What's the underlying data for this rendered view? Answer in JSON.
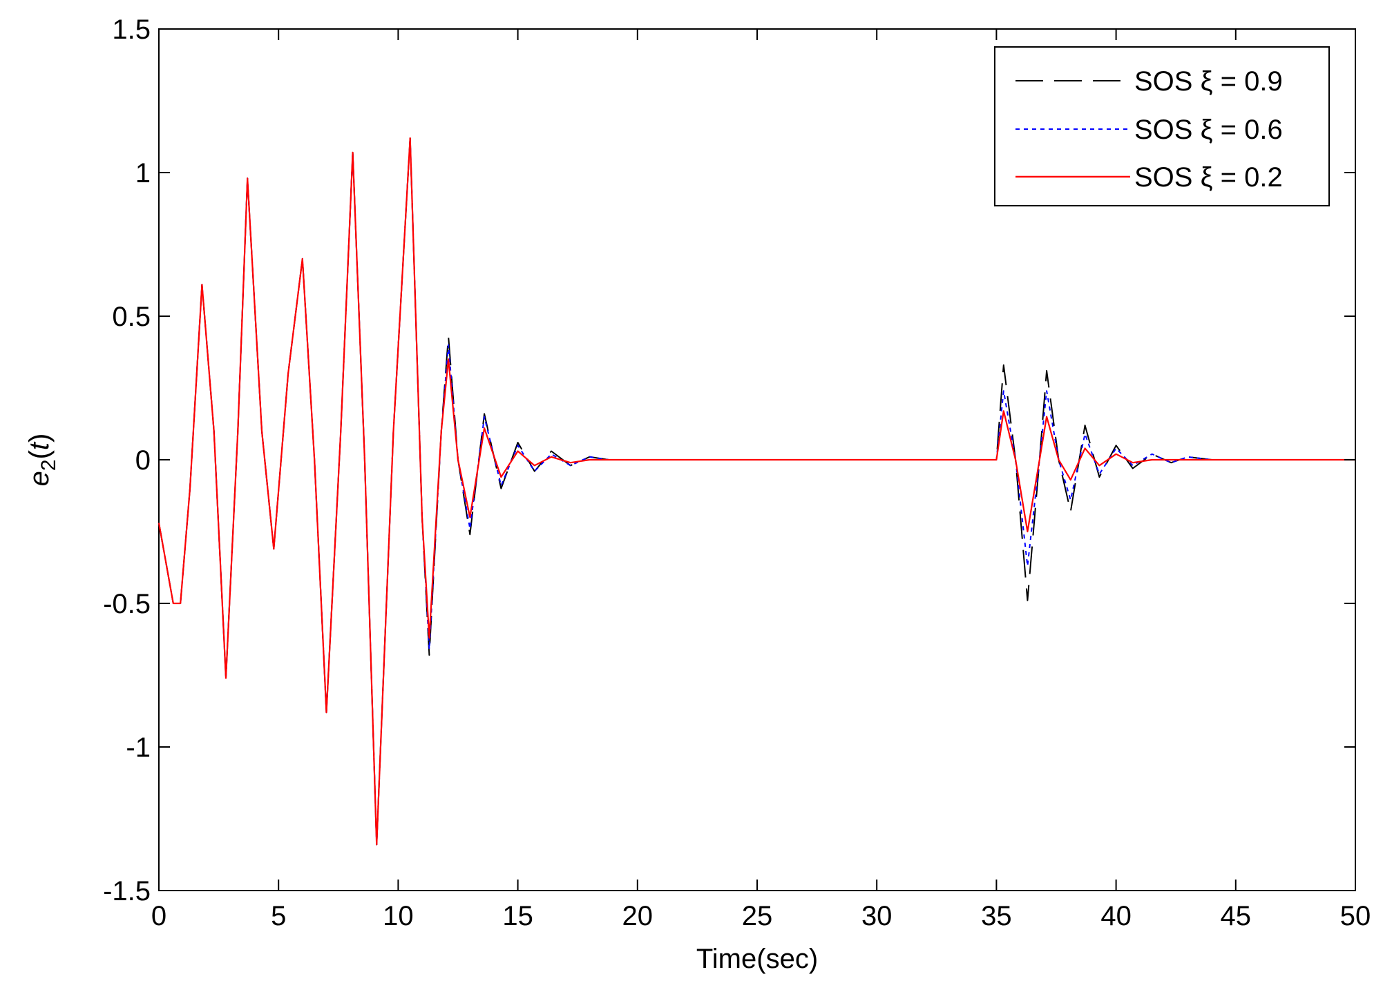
{
  "chart_data": {
    "type": "line",
    "xlabel": "Time(sec)",
    "ylabel": {
      "base": "e",
      "sub": "2",
      "open": "(",
      "var": "t",
      "close": ")"
    },
    "xlim": [
      0,
      50
    ],
    "ylim": [
      -1.5,
      1.5
    ],
    "xticks": [
      0,
      5,
      10,
      15,
      20,
      25,
      30,
      35,
      40,
      45,
      50
    ],
    "yticks": [
      -1.5,
      -1,
      -0.5,
      0,
      0.5,
      1,
      1.5
    ],
    "xtick_labels": [
      "0",
      "5",
      "10",
      "15",
      "20",
      "25",
      "30",
      "35",
      "40",
      "45",
      "50"
    ],
    "ytick_labels": [
      "-1.5",
      "-1",
      "-0.5",
      "0",
      "0.5",
      "1",
      "1.5"
    ],
    "grid": false,
    "legend_position": "top-right",
    "series": [
      {
        "name": "SOS ξ = 0.9",
        "color": "#000000",
        "style": "dashed",
        "points": [
          [
            0,
            -0.22
          ],
          [
            0.6,
            -0.5
          ],
          [
            0.9,
            -0.5
          ],
          [
            1.3,
            -0.1
          ],
          [
            1.8,
            0.61
          ],
          [
            2.3,
            0.1
          ],
          [
            2.8,
            -0.76
          ],
          [
            3.3,
            0.1
          ],
          [
            3.7,
            0.98
          ],
          [
            4.3,
            0.1
          ],
          [
            4.8,
            -0.31
          ],
          [
            5.4,
            0.3
          ],
          [
            6.0,
            0.7
          ],
          [
            6.5,
            0.0
          ],
          [
            7.0,
            -0.88
          ],
          [
            7.6,
            0.1
          ],
          [
            8.1,
            1.07
          ],
          [
            8.6,
            0.0
          ],
          [
            9.1,
            -1.34
          ],
          [
            9.8,
            0.1
          ],
          [
            10.5,
            1.12
          ],
          [
            11.0,
            -0.2
          ],
          [
            11.3,
            -0.68
          ],
          [
            11.8,
            0.1
          ],
          [
            12.1,
            0.43
          ],
          [
            12.5,
            0.0
          ],
          [
            13.0,
            -0.26
          ],
          [
            13.6,
            0.16
          ],
          [
            14.3,
            -0.1
          ],
          [
            15.0,
            0.06
          ],
          [
            15.7,
            -0.04
          ],
          [
            16.4,
            0.03
          ],
          [
            17.2,
            -0.02
          ],
          [
            18.0,
            0.01
          ],
          [
            18.8,
            0.0
          ],
          [
            19.6,
            0.0
          ],
          [
            20,
            0
          ],
          [
            35,
            0
          ],
          [
            35.3,
            0.33
          ],
          [
            35.8,
            0.0
          ],
          [
            36.3,
            -0.49
          ],
          [
            36.8,
            0.0
          ],
          [
            37.1,
            0.31
          ],
          [
            37.6,
            0.0
          ],
          [
            38.1,
            -0.18
          ],
          [
            38.7,
            0.12
          ],
          [
            39.3,
            -0.06
          ],
          [
            40.0,
            0.05
          ],
          [
            40.7,
            -0.03
          ],
          [
            41.5,
            0.02
          ],
          [
            42.3,
            -0.01
          ],
          [
            43.0,
            0.01
          ],
          [
            44.0,
            0.0
          ],
          [
            50,
            0
          ]
        ]
      },
      {
        "name": "SOS ξ = 0.6",
        "color": "#0000ff",
        "style": "dotted",
        "points": [
          [
            0,
            -0.22
          ],
          [
            0.6,
            -0.5
          ],
          [
            0.9,
            -0.5
          ],
          [
            1.3,
            -0.1
          ],
          [
            1.8,
            0.61
          ],
          [
            2.3,
            0.1
          ],
          [
            2.8,
            -0.76
          ],
          [
            3.3,
            0.1
          ],
          [
            3.7,
            0.98
          ],
          [
            4.3,
            0.1
          ],
          [
            4.8,
            -0.31
          ],
          [
            5.4,
            0.3
          ],
          [
            6.0,
            0.7
          ],
          [
            6.5,
            0.0
          ],
          [
            7.0,
            -0.88
          ],
          [
            7.6,
            0.1
          ],
          [
            8.1,
            1.07
          ],
          [
            8.6,
            0.0
          ],
          [
            9.1,
            -1.34
          ],
          [
            9.8,
            0.1
          ],
          [
            10.5,
            1.12
          ],
          [
            11.0,
            -0.2
          ],
          [
            11.3,
            -0.66
          ],
          [
            11.8,
            0.1
          ],
          [
            12.1,
            0.4
          ],
          [
            12.5,
            0.0
          ],
          [
            13.0,
            -0.24
          ],
          [
            13.6,
            0.15
          ],
          [
            14.3,
            -0.09
          ],
          [
            15.0,
            0.05
          ],
          [
            15.7,
            -0.04
          ],
          [
            16.4,
            0.02
          ],
          [
            17.2,
            -0.02
          ],
          [
            18.0,
            0.01
          ],
          [
            18.8,
            0.0
          ],
          [
            19.6,
            0.0
          ],
          [
            20,
            0
          ],
          [
            35,
            0
          ],
          [
            35.3,
            0.24
          ],
          [
            35.8,
            0.0
          ],
          [
            36.3,
            -0.37
          ],
          [
            36.8,
            0.0
          ],
          [
            37.1,
            0.24
          ],
          [
            37.6,
            0.0
          ],
          [
            38.1,
            -0.14
          ],
          [
            38.7,
            0.09
          ],
          [
            39.3,
            -0.05
          ],
          [
            40.0,
            0.04
          ],
          [
            40.7,
            -0.02
          ],
          [
            41.5,
            0.02
          ],
          [
            42.3,
            -0.01
          ],
          [
            43.0,
            0.01
          ],
          [
            44.0,
            0.0
          ],
          [
            50,
            0
          ]
        ]
      },
      {
        "name": "SOS ξ = 0.2",
        "color": "#ff0000",
        "style": "solid",
        "points": [
          [
            0,
            -0.22
          ],
          [
            0.6,
            -0.5
          ],
          [
            0.9,
            -0.5
          ],
          [
            1.3,
            -0.1
          ],
          [
            1.8,
            0.61
          ],
          [
            2.3,
            0.1
          ],
          [
            2.8,
            -0.76
          ],
          [
            3.3,
            0.1
          ],
          [
            3.7,
            0.98
          ],
          [
            4.3,
            0.1
          ],
          [
            4.8,
            -0.31
          ],
          [
            5.4,
            0.3
          ],
          [
            6.0,
            0.7
          ],
          [
            6.5,
            0.0
          ],
          [
            7.0,
            -0.88
          ],
          [
            7.6,
            0.1
          ],
          [
            8.1,
            1.07
          ],
          [
            8.6,
            0.0
          ],
          [
            9.1,
            -1.34
          ],
          [
            9.8,
            0.1
          ],
          [
            10.5,
            1.12
          ],
          [
            11.0,
            -0.2
          ],
          [
            11.3,
            -0.62
          ],
          [
            11.8,
            0.1
          ],
          [
            12.1,
            0.35
          ],
          [
            12.5,
            0.0
          ],
          [
            13.0,
            -0.2
          ],
          [
            13.6,
            0.11
          ],
          [
            14.3,
            -0.06
          ],
          [
            15.0,
            0.03
          ],
          [
            15.7,
            -0.02
          ],
          [
            16.4,
            0.01
          ],
          [
            17.2,
            -0.01
          ],
          [
            18.0,
            0.0
          ],
          [
            20,
            0
          ],
          [
            35,
            0
          ],
          [
            35.3,
            0.17
          ],
          [
            35.8,
            0.0
          ],
          [
            36.3,
            -0.25
          ],
          [
            36.8,
            0.0
          ],
          [
            37.1,
            0.15
          ],
          [
            37.6,
            0.0
          ],
          [
            38.1,
            -0.07
          ],
          [
            38.7,
            0.04
          ],
          [
            39.3,
            -0.02
          ],
          [
            40.0,
            0.02
          ],
          [
            40.7,
            -0.01
          ],
          [
            41.5,
            0.0
          ],
          [
            50,
            0
          ]
        ]
      }
    ]
  }
}
